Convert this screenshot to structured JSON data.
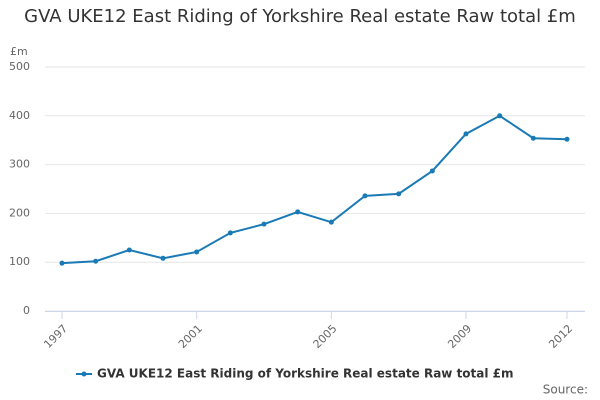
{
  "chart_data": {
    "type": "line",
    "title": "GVA UKE12 East Riding of Yorkshire Real estate Raw total £m",
    "y_label": "£m",
    "x": [
      1997,
      1998,
      1999,
      2000,
      2001,
      2002,
      2003,
      2004,
      2005,
      2006,
      2007,
      2008,
      2009,
      2010,
      2011,
      2012
    ],
    "series": [
      {
        "name": "GVA UKE12 East Riding of Yorkshire Real estate Raw total £m",
        "color": "#1a7ab5",
        "values": [
          98,
          102,
          125,
          108,
          121,
          160,
          178,
          203,
          182,
          236,
          240,
          287,
          363,
          400,
          354,
          352
        ]
      }
    ],
    "xlim": [
      1997,
      2012
    ],
    "xticks": [
      1997,
      2001,
      2005,
      2009,
      2012
    ],
    "ylim": [
      0,
      500
    ],
    "yticks": [
      0,
      100,
      200,
      300,
      400,
      500
    ],
    "grid": true,
    "legend": "bottom",
    "source": "Source:"
  }
}
